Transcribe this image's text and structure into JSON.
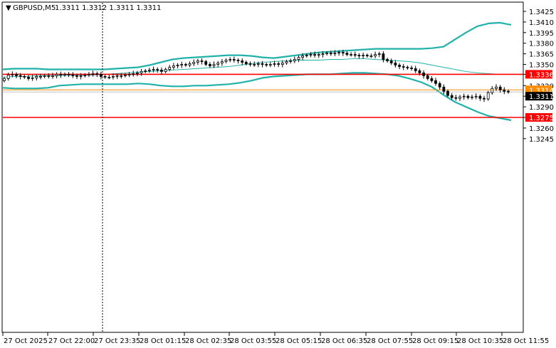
{
  "header": {
    "arrow": "▼",
    "symbol": "GBPUSD,M5",
    "ohlc": "1.3311 1.3312 1.3311 1.3311"
  },
  "colors": {
    "background": "#ffffff",
    "frame": "#000000",
    "candle": "#000000",
    "bollinger": "#20b2aa",
    "middle_band": "#20b2aa",
    "level_lines": "#ff0000",
    "ask_line": "#ff8c00",
    "bid_line": "#c0c0c0",
    "current_price_tag": "#000000",
    "ask_price_tag": "#ff8c00",
    "level_tag": "#ff0000"
  },
  "chart_data": {
    "type": "candlestick",
    "y_axis_ticks": [
      "1.3425",
      "1.3410",
      "1.3395",
      "1.3380",
      "1.3365",
      "1.3350",
      "1.3336",
      "1.3320",
      "1.3305",
      "1.3290",
      "1.3275",
      "1.3260",
      "1.3245"
    ],
    "ylim": [
      1.324,
      1.343
    ],
    "x_axis_ticks": [
      "27 Oct 2025",
      "27 Oct 22:00",
      "27 Oct 23:35",
      "28 Oct 01:15",
      "28 Oct 02:35",
      "28 Oct 03:55",
      "28 Oct 05:15",
      "28 Oct 06:35",
      "28 Oct 07:55",
      "28 Oct 09:15",
      "28 Oct 10:35",
      "28 Oct 11:55"
    ],
    "horizontal_levels": [
      {
        "label": "1.3336",
        "value": 1.3336
      },
      {
        "label": "1.3275",
        "value": 1.3275
      }
    ],
    "ask_price": {
      "label": "1.3314",
      "value": 1.3314
    },
    "current_price": {
      "label": "1.3311",
      "value": 1.3311
    },
    "vertical_marker_at": "27 Oct 23:35",
    "close_values": [
      1.333,
      1.3335,
      1.3336,
      1.3334,
      1.3333,
      1.3332,
      1.333,
      1.3331,
      1.3333,
      1.3333,
      1.3334,
      1.3333,
      1.3334,
      1.3336,
      1.3335,
      1.3336,
      1.3335,
      1.3334,
      1.3333,
      1.3334,
      1.3335,
      1.3336,
      1.3337,
      1.3336,
      1.3333,
      1.3332,
      1.3332,
      1.3333,
      1.3334,
      1.3334,
      1.3335,
      1.3336,
      1.3337,
      1.3338,
      1.334,
      1.3341,
      1.3342,
      1.3343,
      1.3342,
      1.334,
      1.3343,
      1.3346,
      1.3348,
      1.3349,
      1.335,
      1.3349,
      1.3351,
      1.3353,
      1.3355,
      1.3354,
      1.335,
      1.3348,
      1.335,
      1.3352,
      1.3354,
      1.3356,
      1.3357,
      1.3356,
      1.3355,
      1.3353,
      1.3351,
      1.335,
      1.335,
      1.3351,
      1.335,
      1.3349,
      1.335,
      1.3351,
      1.335,
      1.3352,
      1.3354,
      1.3355,
      1.3357,
      1.336,
      1.3362,
      1.3363,
      1.3364,
      1.3363,
      1.3364,
      1.3365,
      1.3366,
      1.3365,
      1.3366,
      1.3367,
      1.3366,
      1.3364,
      1.3364,
      1.3363,
      1.3362,
      1.3363,
      1.3362,
      1.3362,
      1.3364,
      1.3365,
      1.3357,
      1.3355,
      1.3352,
      1.3349,
      1.3347,
      1.3346,
      1.3345,
      1.3344,
      1.3341,
      1.3338,
      1.3334,
      1.333,
      1.3327,
      1.3323,
      1.3318,
      1.3312,
      1.3306,
      1.3303,
      1.3302,
      1.3304,
      1.3305,
      1.3303,
      1.3304,
      1.3305,
      1.3302,
      1.3301,
      1.331,
      1.3316,
      1.3318,
      1.3314,
      1.3312,
      1.3311
    ],
    "bollinger": {
      "upper": [
        1.3343,
        1.3344,
        1.3344,
        1.3344,
        1.3343,
        1.3343,
        1.3343,
        1.3343,
        1.3343,
        1.3343,
        1.3344,
        1.3345,
        1.3346,
        1.3349,
        1.3353,
        1.3357,
        1.3359,
        1.336,
        1.3361,
        1.3362,
        1.3363,
        1.3363,
        1.3362,
        1.336,
        1.3359,
        1.3361,
        1.3363,
        1.3365,
        1.3367,
        1.3368,
        1.3369,
        1.337,
        1.3371,
        1.3372,
        1.3372,
        1.3372,
        1.3372,
        1.3372,
        1.3373,
        1.3375,
        1.3385,
        1.3395,
        1.3404,
        1.3408,
        1.3409,
        1.3406
      ],
      "middle": [
        1.3332,
        1.3333,
        1.3333,
        1.3334,
        1.3334,
        1.3334,
        1.3335,
        1.3335,
        1.3335,
        1.3336,
        1.3337,
        1.3338,
        1.3339,
        1.334,
        1.3341,
        1.3342,
        1.3343,
        1.3344,
        1.3345,
        1.3346,
        1.3347,
        1.3349,
        1.3351,
        1.3353,
        1.3354,
        1.3355,
        1.3356,
        1.3356,
        1.3356,
        1.3357,
        1.3357,
        1.3358,
        1.3358,
        1.3357,
        1.3356,
        1.3355,
        1.3354,
        1.3352,
        1.3349,
        1.3346,
        1.3343,
        1.334,
        1.3338,
        1.3337,
        1.3336,
        1.3336
      ],
      "lower": [
        1.3317,
        1.3316,
        1.3316,
        1.3316,
        1.3317,
        1.332,
        1.3321,
        1.3322,
        1.3322,
        1.3322,
        1.3322,
        1.3322,
        1.3323,
        1.3322,
        1.332,
        1.3319,
        1.3319,
        1.332,
        1.332,
        1.3321,
        1.3322,
        1.3324,
        1.3327,
        1.3331,
        1.3333,
        1.3334,
        1.3335,
        1.3336,
        1.3336,
        1.3336,
        1.3337,
        1.3338,
        1.3338,
        1.3337,
        1.3336,
        1.3334,
        1.333,
        1.3325,
        1.3318,
        1.3307,
        1.3297,
        1.329,
        1.3283,
        1.3277,
        1.3274,
        1.3271
      ]
    }
  }
}
